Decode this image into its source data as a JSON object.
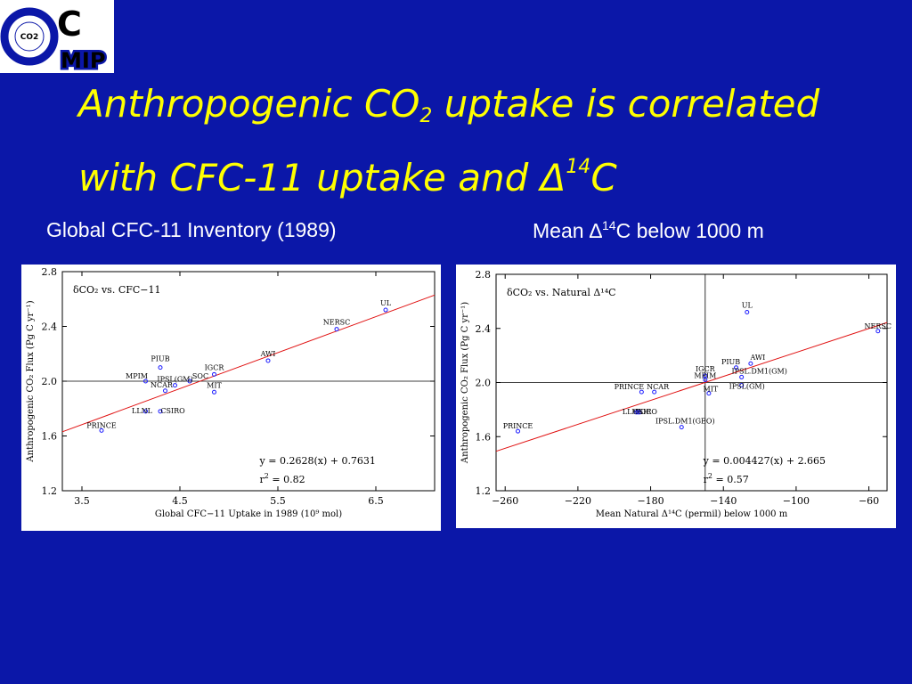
{
  "logo": {
    "letters_top": "C",
    "letters_bottom": "MIP",
    "badge": "CO2"
  },
  "slide": {
    "title_part1": "Anthropogenic CO",
    "title_sub": "2",
    "title_part2": " uptake is correlated",
    "title_line2_part1": "with CFC-11 uptake and Δ",
    "title_sup": "14",
    "title_line2_part2": "C"
  },
  "captions": {
    "left": "Global CFC-11 Inventory (1989)",
    "right_prefix": "Mean ∆",
    "right_sup": "14",
    "right_suffix": "C  below 1000 m"
  },
  "colors": {
    "background": "#0b17a8",
    "title": "#ffff00",
    "fit_line": "#e01010",
    "points": "#1a1aff"
  },
  "chart_data": [
    {
      "type": "scatter",
      "annotation": "δCO₂ vs. CFC−11",
      "xlabel": "Global CFC−11 Uptake in 1989 (10⁹ mol)",
      "ylabel": "Anthropogenic CO₂ Flux (Pg C yr⁻¹)",
      "xlim": [
        3.3,
        7.1
      ],
      "ylim": [
        1.2,
        2.8
      ],
      "xticks": [
        "3.5",
        "4.5",
        "5.5",
        "6.5"
      ],
      "yticks": [
        "1.2",
        "1.6",
        "2.0",
        "2.4",
        "2.8"
      ],
      "reference_lines": {
        "y": 2.0
      },
      "fit": {
        "slope": 0.2628,
        "intercept": 0.7631
      },
      "equation": "y = 0.2628(x) + 0.7631",
      "r2_text": "= 0.82",
      "points": [
        {
          "label": "UL",
          "x": 6.6,
          "y": 2.52
        },
        {
          "label": "NERSC",
          "x": 6.1,
          "y": 2.38
        },
        {
          "label": "AWI",
          "x": 5.4,
          "y": 2.15
        },
        {
          "label": "IGCR",
          "x": 4.85,
          "y": 2.05
        },
        {
          "label": "MIT",
          "x": 4.85,
          "y": 1.92
        },
        {
          "label": "PIUB",
          "x": 4.3,
          "y": 2.1
        },
        {
          "label": "MPIM",
          "x": 4.15,
          "y": 2.0
        },
        {
          "label": "SOC",
          "x": 4.6,
          "y": 2.0
        },
        {
          "label": "IPSL(GM)",
          "x": 4.45,
          "y": 1.97
        },
        {
          "label": "NCAR",
          "x": 4.35,
          "y": 1.93
        },
        {
          "label": "LLNL",
          "x": 4.15,
          "y": 1.78
        },
        {
          "label": "CSIRO",
          "x": 4.3,
          "y": 1.78
        },
        {
          "label": "PRINCE",
          "x": 3.7,
          "y": 1.64
        }
      ]
    },
    {
      "type": "scatter",
      "annotation": "δCO₂ vs. Natural Δ¹⁴C",
      "xlabel": "Mean Natural Δ¹⁴C (permil) below 1000 m",
      "ylabel": "Anthropogenic CO₂ Flux (Pg C yr⁻¹)",
      "xlim": [
        -265,
        -50
      ],
      "ylim": [
        1.2,
        2.8
      ],
      "xticks": [
        "−260",
        "−220",
        "−180",
        "−140",
        "−100",
        "−60"
      ],
      "yticks": [
        "1.2",
        "1.6",
        "2.0",
        "2.4",
        "2.8"
      ],
      "reference_lines": {
        "x": -150,
        "y": 2.0
      },
      "fit": {
        "slope": 0.004427,
        "intercept": 2.665
      },
      "equation": "y = 0.004427(x) + 2.665",
      "r2_text": "= 0.57",
      "points": [
        {
          "label": "UL",
          "x": -127,
          "y": 2.52
        },
        {
          "label": "NERSC",
          "x": -55,
          "y": 2.38
        },
        {
          "label": "AWI",
          "x": -125,
          "y": 2.14
        },
        {
          "label": "PIUB",
          "x": -133,
          "y": 2.11
        },
        {
          "label": "IPSL.DM1(GM)",
          "x": -130,
          "y": 2.04
        },
        {
          "label": "IPSL(GM)",
          "x": -130,
          "y": 1.98
        },
        {
          "label": "IGCR",
          "x": -150,
          "y": 2.05
        },
        {
          "label": "MPIM",
          "x": -150,
          "y": 2.02
        },
        {
          "label": "MIT",
          "x": -148,
          "y": 1.92
        },
        {
          "label": "PRINCE",
          "x": -185,
          "y": 1.93
        },
        {
          "label": "NCAR",
          "x": -178,
          "y": 1.93
        },
        {
          "label": "LLNL",
          "x": -188,
          "y": 1.78
        },
        {
          "label": "SOC",
          "x": -186,
          "y": 1.78
        },
        {
          "label": "CSIRO",
          "x": -187,
          "y": 1.78
        },
        {
          "label": "IPSL.DM1(GEO)",
          "x": -163,
          "y": 1.67
        },
        {
          "label": "PRINCE",
          "x": -253,
          "y": 1.64
        }
      ]
    }
  ]
}
